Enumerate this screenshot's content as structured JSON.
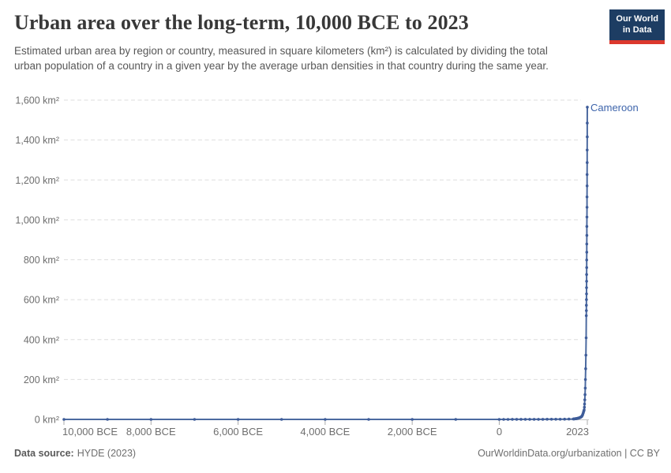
{
  "header": {
    "title": "Urban area over the long-term, 10,000 BCE to 2023",
    "subtitle": "Estimated urban area by region or country, measured in square kilometers (km²) is calculated by dividing the total urban population of a country in a given year by the average urban densities in that country during the same year.",
    "logo": {
      "line1": "Our World",
      "line2": "in Data",
      "bg_color": "#1d3d63",
      "accent_color": "#dc382d"
    }
  },
  "chart_data": {
    "type": "line",
    "title": "Urban area over the long-term, 10,000 BCE to 2023",
    "xlabel": "",
    "ylabel": "",
    "xlim": [
      -10000,
      2023
    ],
    "ylim": [
      0,
      1600
    ],
    "grid": "horizontal-dashed",
    "legend_position": "end-of-line-label",
    "colors": {
      "line": "#4c6aa0",
      "marker": "#3e5c99",
      "label": "#3d64ab",
      "gridline": "#dedede",
      "axis": "#c4c4c4",
      "tick_text": "#6e6e6e"
    },
    "y_ticks": [
      {
        "value": 0,
        "label": "0 km²"
      },
      {
        "value": 200,
        "label": "200 km²"
      },
      {
        "value": 400,
        "label": "400 km²"
      },
      {
        "value": 600,
        "label": "600 km²"
      },
      {
        "value": 800,
        "label": "800 km²"
      },
      {
        "value": 1000,
        "label": "1,000 km²"
      },
      {
        "value": 1200,
        "label": "1,200 km²"
      },
      {
        "value": 1400,
        "label": "1,400 km²"
      },
      {
        "value": 1600,
        "label": "1,600 km²"
      }
    ],
    "x_ticks": [
      {
        "year": -10000,
        "label": "10,000 BCE",
        "align": "start"
      },
      {
        "year": -8000,
        "label": "8,000 BCE",
        "align": "middle"
      },
      {
        "year": -6000,
        "label": "6,000 BCE",
        "align": "middle"
      },
      {
        "year": -4000,
        "label": "4,000 BCE",
        "align": "middle"
      },
      {
        "year": -2000,
        "label": "2,000 BCE",
        "align": "middle"
      },
      {
        "year": 0,
        "label": "0",
        "align": "middle"
      },
      {
        "year": 2023,
        "label": "2023",
        "align": "end"
      }
    ],
    "series": [
      {
        "name": "Cameroon",
        "points": [
          [
            -10000,
            0
          ],
          [
            -9000,
            0
          ],
          [
            -8000,
            0
          ],
          [
            -7000,
            0
          ],
          [
            -6000,
            0
          ],
          [
            -5000,
            0
          ],
          [
            -4000,
            0
          ],
          [
            -3000,
            0
          ],
          [
            -2000,
            0
          ],
          [
            -1000,
            0
          ],
          [
            0,
            0.1
          ],
          [
            100,
            0.1
          ],
          [
            200,
            0.1
          ],
          [
            300,
            0.2
          ],
          [
            400,
            0.2
          ],
          [
            500,
            0.3
          ],
          [
            600,
            0.3
          ],
          [
            700,
            0.4
          ],
          [
            800,
            0.4
          ],
          [
            900,
            0.5
          ],
          [
            1000,
            0.5
          ],
          [
            1100,
            0.6
          ],
          [
            1200,
            0.7
          ],
          [
            1300,
            0.8
          ],
          [
            1400,
            0.9
          ],
          [
            1500,
            1.1
          ],
          [
            1600,
            1.4
          ],
          [
            1700,
            2
          ],
          [
            1710,
            2.2
          ],
          [
            1720,
            2.4
          ],
          [
            1730,
            2.7
          ],
          [
            1740,
            3
          ],
          [
            1750,
            3.3
          ],
          [
            1760,
            3.6
          ],
          [
            1770,
            4
          ],
          [
            1780,
            4.4
          ],
          [
            1790,
            4.9
          ],
          [
            1800,
            5.4
          ],
          [
            1810,
            6
          ],
          [
            1820,
            6.6
          ],
          [
            1830,
            7.3
          ],
          [
            1840,
            8.1
          ],
          [
            1850,
            9
          ],
          [
            1860,
            10
          ],
          [
            1870,
            11
          ],
          [
            1880,
            12.5
          ],
          [
            1890,
            14
          ],
          [
            1900,
            17
          ],
          [
            1910,
            21
          ],
          [
            1920,
            26
          ],
          [
            1930,
            33
          ],
          [
            1940,
            40
          ],
          [
            1945,
            44
          ],
          [
            1950,
            48
          ],
          [
            1955,
            61
          ],
          [
            1960,
            77
          ],
          [
            1965,
            98
          ],
          [
            1970,
            124
          ],
          [
            1975,
            157
          ],
          [
            1980,
            200
          ],
          [
            1985,
            254
          ],
          [
            1990,
            322
          ],
          [
            1995,
            409
          ],
          [
            2000,
            520
          ],
          [
            2001,
            545
          ],
          [
            2002,
            572
          ],
          [
            2003,
            600
          ],
          [
            2004,
            629
          ],
          [
            2005,
            660
          ],
          [
            2006,
            692
          ],
          [
            2007,
            726
          ],
          [
            2008,
            761
          ],
          [
            2009,
            799
          ],
          [
            2010,
            838
          ],
          [
            2011,
            879
          ],
          [
            2012,
            922
          ],
          [
            2013,
            967
          ],
          [
            2014,
            1014
          ],
          [
            2015,
            1063
          ],
          [
            2016,
            1115
          ],
          [
            2017,
            1170
          ],
          [
            2018,
            1227
          ],
          [
            2019,
            1287
          ],
          [
            2020,
            1350
          ],
          [
            2021,
            1416
          ],
          [
            2022,
            1485
          ],
          [
            2023,
            1565
          ]
        ]
      }
    ]
  },
  "footer": {
    "source_label": "Data source:",
    "source_value": "HYDE (2023)",
    "right_text": "OurWorldinData.org/urbanization | CC BY"
  }
}
